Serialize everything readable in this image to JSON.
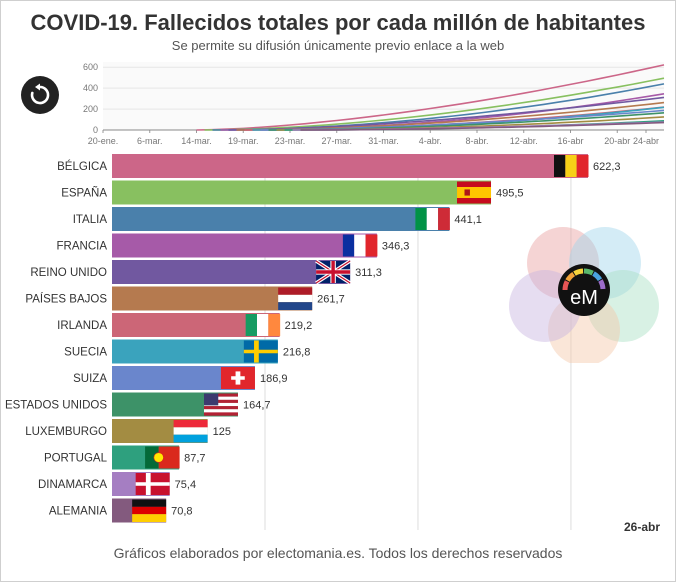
{
  "header": {
    "title": "COVID-19. Fallecidos totales por cada millón de habitantes",
    "subtitle": "Se permite su difusión únicamente previo enlace a la web"
  },
  "footer": {
    "credit": "Gráficos elaborados por electomania.es. Todos los derechos reservados"
  },
  "logo": {
    "text": "eM",
    "colors": [
      "#e8a0a0",
      "#a0d4ec",
      "#a8e0c4",
      "#f4c8a8",
      "#c8b4e0"
    ]
  },
  "controls": {
    "replay_icon": "replay-icon"
  },
  "sparkline": {
    "x_ticks": [
      "20-ene.",
      "6-mar.",
      "14-mar.",
      "19-mar.",
      "23-mar.",
      "27-mar.",
      "31-mar.",
      "4-abr.",
      "8-abr.",
      "12-abr.",
      "16-abr",
      "20-abr",
      "24-abr"
    ],
    "y_ticks": [
      0,
      200,
      400,
      600
    ],
    "ylim": [
      0,
      650
    ]
  },
  "chart_data": {
    "type": "bar",
    "orientation": "horizontal",
    "title": "COVID-19. Fallecidos totales por cada millón de habitantes",
    "date_label": "26-abr",
    "xlim": [
      0,
      650
    ],
    "gridlines": [
      0,
      200,
      400,
      600
    ],
    "categories": [
      "BÉLGICA",
      "ESPAÑA",
      "ITALIA",
      "FRANCIA",
      "REINO UNIDO",
      "PAÍSES BAJOS",
      "IRLANDA",
      "SUECIA",
      "SUIZA",
      "ESTADOS UNIDOS",
      "LUXEMBURGO",
      "PORTUGAL",
      "DINAMARCA",
      "ALEMANIA"
    ],
    "values": [
      622.3,
      495.5,
      441.1,
      346.3,
      311.3,
      261.7,
      219.2,
      216.8,
      186.9,
      164.7,
      125,
      87.7,
      75.4,
      70.8
    ],
    "value_labels": [
      "622,3",
      "495,5",
      "441,1",
      "346,3",
      "311,3",
      "261,7",
      "219,2",
      "216,8",
      "186,9",
      "164,7",
      "125",
      "87,7",
      "75,4",
      "70,8"
    ],
    "colors": [
      "#cc6688",
      "#88c060",
      "#4a80ab",
      "#a65aa8",
      "#7158a0",
      "#b57a4f",
      "#cc6677",
      "#3aa3bd",
      "#6a86cc",
      "#3d9268",
      "#a38c42",
      "#2ea07e",
      "#a57ec2",
      "#835a7e"
    ],
    "flags": [
      "belgium",
      "spain",
      "italy",
      "france",
      "united-kingdom",
      "netherlands",
      "ireland",
      "sweden",
      "switzerland",
      "united-states",
      "luxembourg",
      "portugal",
      "denmark",
      "germany"
    ]
  }
}
